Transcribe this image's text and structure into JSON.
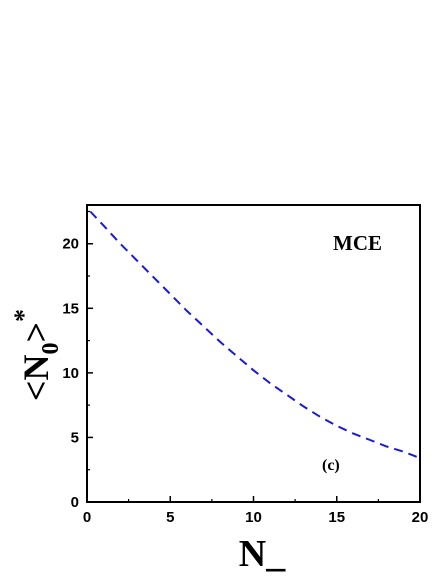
{
  "chart_data": {
    "type": "line",
    "title": "",
    "xlabel": "N_",
    "ylabel": "<N₀>*",
    "ylabel_parts": {
      "open": "<",
      "base": "N",
      "sub": "0",
      "close": ">",
      "sup": "*"
    },
    "xlim": [
      0,
      20
    ],
    "ylim": [
      0,
      23
    ],
    "xticks": [
      0,
      5,
      10,
      15,
      20
    ],
    "yticks": [
      0,
      5,
      10,
      15,
      20
    ],
    "xtick_labels": [
      "0",
      "5",
      "10",
      "15",
      "20"
    ],
    "ytick_labels": [
      "0",
      "5",
      "10",
      "15",
      "20"
    ],
    "grid": false,
    "legend": "none",
    "annotations": {
      "ensemble": "MCE",
      "panel": "(c)"
    },
    "colors": {
      "series": "#1a1adb",
      "axis": "#000000"
    },
    "series": [
      {
        "style": "dashed",
        "x": [
          0.2,
          1,
          2,
          3,
          4,
          5,
          6,
          7,
          8,
          9,
          10,
          11,
          12,
          13,
          14,
          15,
          16,
          17,
          18,
          19,
          19.8
        ],
        "y": [
          22.5,
          21.4,
          20.0,
          18.7,
          17.4,
          16.1,
          14.8,
          13.6,
          12.4,
          11.3,
          10.2,
          9.2,
          8.3,
          7.4,
          6.6,
          5.9,
          5.3,
          4.8,
          4.3,
          3.9,
          3.5
        ]
      }
    ]
  }
}
